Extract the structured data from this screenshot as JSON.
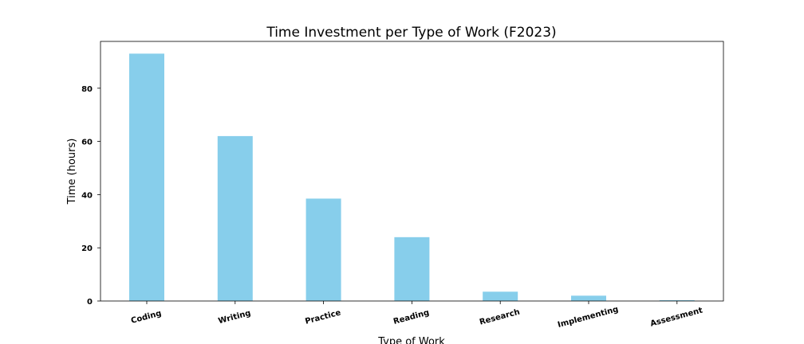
{
  "chart_data": {
    "type": "bar",
    "title": "Time Investment per Type of Work (F2023)",
    "xlabel": "Type of Work",
    "ylabel": "Time (hours)",
    "categories": [
      "Coding",
      "Writing",
      "Practice",
      "Reading",
      "Research",
      "Implementing",
      "Assessment"
    ],
    "values": [
      93,
      62,
      38.5,
      24,
      3.5,
      2,
      0.3
    ],
    "ylim": [
      0,
      97.6
    ],
    "yticks": [
      0,
      20,
      40,
      60,
      80
    ],
    "bar_color": "#87ceeb",
    "grid": false,
    "legend": "none"
  }
}
